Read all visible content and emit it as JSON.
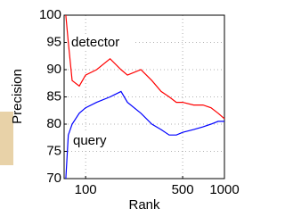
{
  "chart_data": {
    "type": "line",
    "xlabel": "Rank",
    "ylabel": "Precision",
    "x": [
      72,
      75,
      80,
      90,
      100,
      120,
      150,
      180,
      200,
      250,
      300,
      350,
      400,
      450,
      500,
      600,
      700,
      800,
      900,
      1000
    ],
    "series": [
      {
        "name": "detector",
        "color": "#ff0000",
        "values": [
          100,
          95,
          88,
          87,
          89,
          90,
          92,
          90,
          89,
          90,
          88,
          86,
          85,
          84,
          84,
          83.5,
          83.5,
          83,
          82,
          81
        ]
      },
      {
        "name": "query",
        "color": "#0000ff",
        "values": [
          70,
          78,
          80,
          82,
          83,
          84,
          85,
          86,
          84,
          82,
          80,
          79,
          78,
          78,
          78.5,
          79,
          79.5,
          80,
          80.5,
          80.5
        ]
      }
    ],
    "xlim": [
      70,
      1000
    ],
    "xticks": [
      100,
      500,
      1000
    ],
    "xscale": "log",
    "ylim": [
      70,
      100
    ],
    "yticks": [
      70,
      75,
      80,
      85,
      90,
      95,
      100
    ],
    "grid": true
  }
}
